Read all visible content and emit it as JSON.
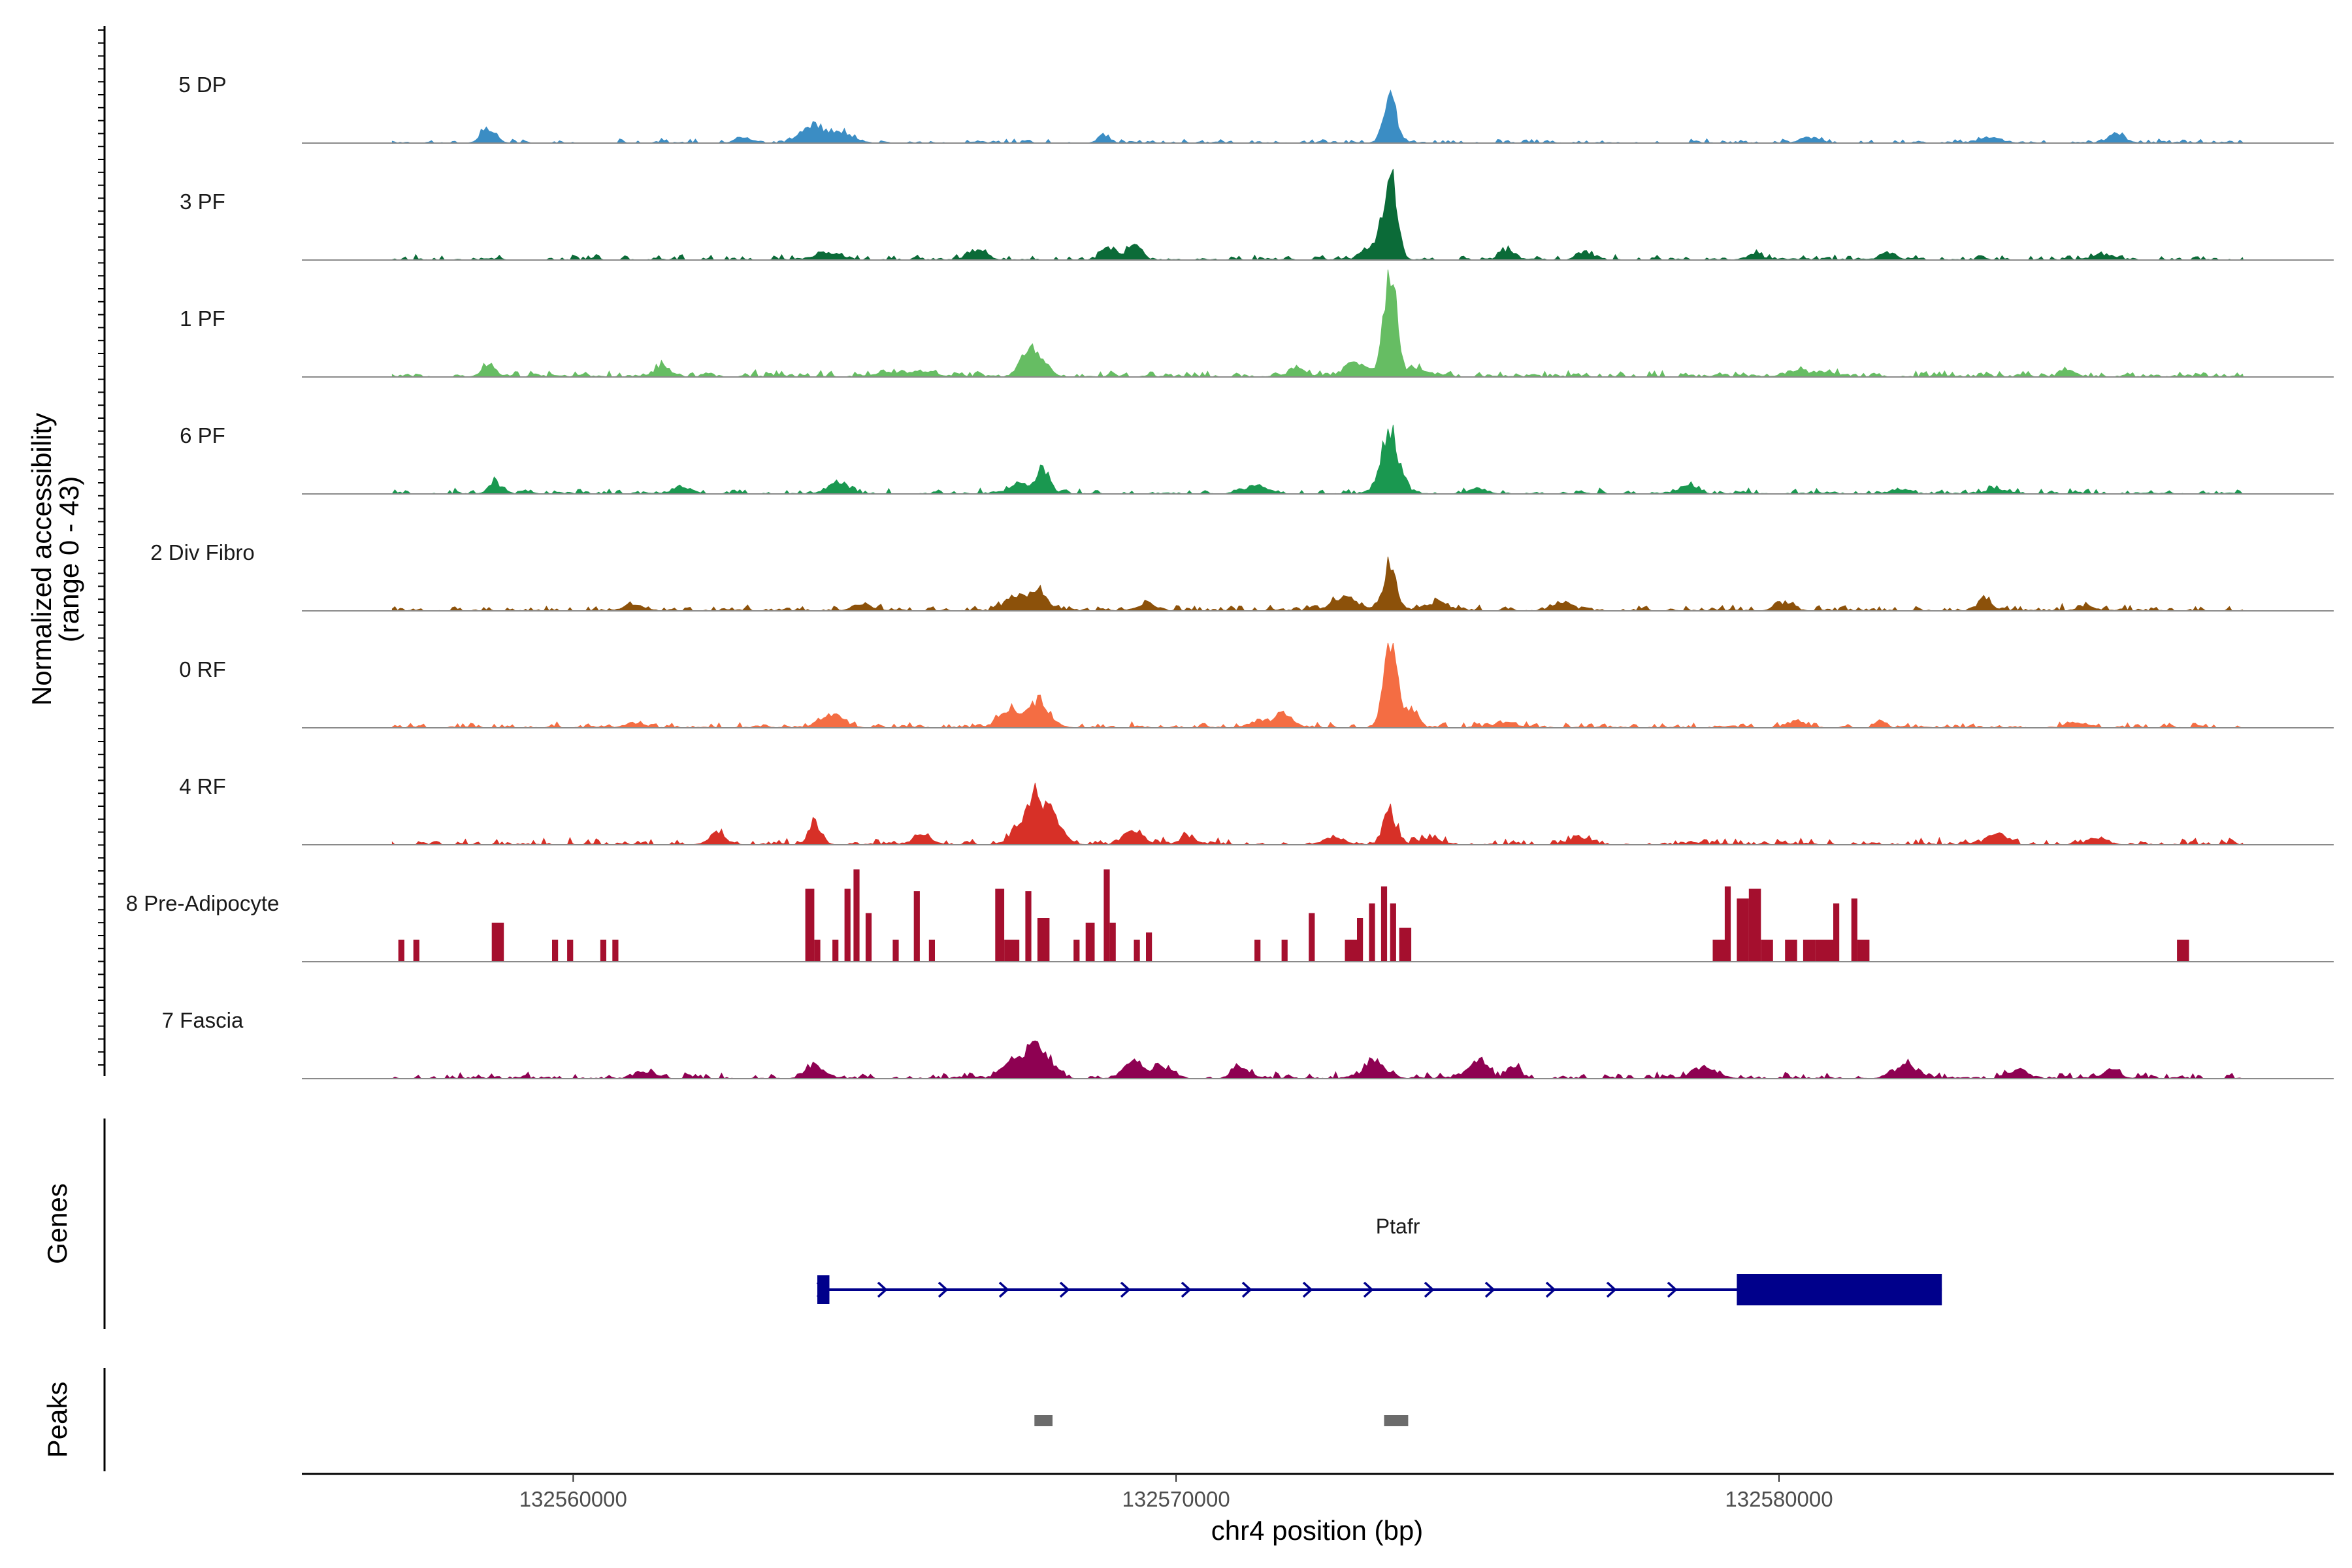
{
  "chart_data": {
    "type": "area",
    "title": "",
    "chromosome": "chr4",
    "xlabel": "chr4 position (bp)",
    "ylabel": "Normalized accessibility",
    "ylabel_range": "(range 0 - 43)",
    "xlim": [
      132555500,
      132589200
    ],
    "ylim": [
      0,
      43
    ],
    "x_ticks": [
      132560000,
      132570000,
      132580000
    ],
    "x_tick_labels": [
      "132560000",
      "132570000",
      "132580000"
    ],
    "tracks": [
      {
        "name": "5 DP",
        "color": "#3B8DC4",
        "style": "area",
        "noise": 2,
        "density": 0.55,
        "peaks": [
          [
            132573550,
            17,
            110
          ],
          [
            132558600,
            6,
            120
          ],
          [
            132564000,
            7,
            200
          ],
          [
            132564500,
            4,
            150
          ],
          [
            132568800,
            3,
            100
          ],
          [
            132562800,
            2,
            120
          ],
          [
            132580500,
            2,
            150
          ],
          [
            132583500,
            2,
            200
          ],
          [
            132585600,
            3,
            150
          ]
        ]
      },
      {
        "name": "3 PF",
        "color": "#0B6B38",
        "style": "area",
        "noise": 2.5,
        "density": 0.6,
        "peaks": [
          [
            132573550,
            34,
            110
          ],
          [
            132573250,
            6,
            150
          ],
          [
            132569300,
            7,
            110
          ],
          [
            132568900,
            5,
            120
          ],
          [
            132566700,
            4,
            150
          ],
          [
            132564200,
            3,
            200
          ],
          [
            132575500,
            4,
            120
          ],
          [
            132576800,
            3,
            100
          ],
          [
            132579600,
            2,
            150
          ],
          [
            132581800,
            2,
            150
          ],
          [
            132585400,
            2,
            150
          ]
        ]
      },
      {
        "name": "1 PF",
        "color": "#66BD63",
        "style": "area",
        "noise": 3,
        "density": 0.8,
        "peaks": [
          [
            132573550,
            43,
            100
          ],
          [
            132567700,
            9,
            150
          ],
          [
            132567500,
            6,
            120
          ],
          [
            132573000,
            5,
            200
          ],
          [
            132572000,
            3,
            150
          ],
          [
            132558600,
            4,
            120
          ],
          [
            132561500,
            4,
            120
          ],
          [
            132565500,
            2,
            400
          ],
          [
            132574000,
            3,
            200
          ],
          [
            132580500,
            2,
            350
          ],
          [
            132584800,
            3,
            120
          ]
        ]
      },
      {
        "name": "6 PF",
        "color": "#1A9850",
        "style": "area",
        "noise": 2.5,
        "density": 0.6,
        "peaks": [
          [
            132573550,
            24,
            150
          ],
          [
            132567800,
            10,
            110
          ],
          [
            132567400,
            4,
            150
          ],
          [
            132564400,
            5,
            150
          ],
          [
            132558700,
            5,
            100
          ],
          [
            132555900,
            4,
            80
          ],
          [
            132561800,
            3,
            150
          ],
          [
            132571300,
            3,
            200
          ],
          [
            132575000,
            2,
            150
          ],
          [
            132578500,
            3,
            150
          ],
          [
            132582000,
            2,
            150
          ],
          [
            132583600,
            2,
            150
          ]
        ]
      },
      {
        "name": "2 Div Fibro",
        "color": "#8C510A",
        "style": "area",
        "noise": 3,
        "density": 0.65,
        "peaks": [
          [
            132573550,
            18,
            110
          ],
          [
            132567700,
            8,
            150
          ],
          [
            132567300,
            6,
            120
          ],
          [
            132572800,
            5,
            200
          ],
          [
            132574300,
            3,
            200
          ],
          [
            132569500,
            3,
            150
          ],
          [
            132564800,
            3,
            150
          ],
          [
            132561000,
            3,
            150
          ],
          [
            132583400,
            5,
            100
          ],
          [
            132576400,
            3,
            150
          ],
          [
            132580100,
            3,
            150
          ],
          [
            132585100,
            2,
            150
          ]
        ]
      },
      {
        "name": "0 RF",
        "color": "#F46D43",
        "style": "area",
        "noise": 2.5,
        "density": 0.6,
        "peaks": [
          [
            132573550,
            34,
            110
          ],
          [
            132573900,
            8,
            100
          ],
          [
            132567700,
            10,
            200
          ],
          [
            132567200,
            7,
            150
          ],
          [
            132564300,
            5,
            200
          ],
          [
            132571800,
            5,
            150
          ],
          [
            132571400,
            3,
            150
          ],
          [
            132561000,
            2,
            150
          ],
          [
            132575500,
            2,
            150
          ],
          [
            132580300,
            2,
            150
          ],
          [
            132581700,
            3,
            80
          ],
          [
            132585000,
            2,
            150
          ]
        ]
      },
      {
        "name": "4 RF",
        "color": "#D73027",
        "style": "area",
        "noise": 3,
        "density": 0.6,
        "peaks": [
          [
            132567700,
            20,
            250
          ],
          [
            132573550,
            13,
            110
          ],
          [
            132564000,
            8,
            100
          ],
          [
            132569300,
            5,
            150
          ],
          [
            132562400,
            4,
            150
          ],
          [
            132565800,
            4,
            150
          ],
          [
            132570200,
            3,
            150
          ],
          [
            132572600,
            3,
            150
          ],
          [
            132574200,
            3,
            150
          ],
          [
            132583600,
            5,
            150
          ],
          [
            132585300,
            3,
            150
          ],
          [
            132576700,
            3,
            150
          ]
        ]
      },
      {
        "name": "8 Pre-Adipocyte",
        "color": "#A50F2E",
        "style": "bars",
        "blocks": [
          [
            132557100,
            132557200,
            9
          ],
          [
            132557350,
            132557450,
            9
          ],
          [
            132558650,
            132558850,
            16
          ],
          [
            132559650,
            132559750,
            9
          ],
          [
            132559900,
            132560000,
            9
          ],
          [
            132560450,
            132560550,
            9
          ],
          [
            132560650,
            132560750,
            9
          ],
          [
            132563850,
            132564000,
            30
          ],
          [
            132564000,
            132564100,
            9
          ],
          [
            132564300,
            132564400,
            9
          ],
          [
            132564500,
            132564600,
            30
          ],
          [
            132564650,
            132564750,
            38
          ],
          [
            132564850,
            132564950,
            20
          ],
          [
            132565300,
            132565400,
            9
          ],
          [
            132565650,
            132565750,
            29
          ],
          [
            132565900,
            132566000,
            9
          ],
          [
            132567000,
            132567150,
            30
          ],
          [
            132567150,
            132567400,
            9
          ],
          [
            132567500,
            132567600,
            29
          ],
          [
            132567700,
            132567900,
            18
          ],
          [
            132568300,
            132568400,
            9
          ],
          [
            132568500,
            132568650,
            16
          ],
          [
            132568800,
            132568900,
            38
          ],
          [
            132568900,
            132569000,
            16
          ],
          [
            132569300,
            132569400,
            9
          ],
          [
            132569500,
            132569600,
            12
          ],
          [
            132571300,
            132571400,
            9
          ],
          [
            132571750,
            132571850,
            9
          ],
          [
            132572200,
            132572300,
            20
          ],
          [
            132572800,
            132573000,
            9
          ],
          [
            132573000,
            132573100,
            18
          ],
          [
            132573200,
            132573300,
            24
          ],
          [
            132573400,
            132573500,
            31
          ],
          [
            132573550,
            132573650,
            24
          ],
          [
            132573700,
            132573900,
            14
          ],
          [
            132578900,
            132579100,
            9
          ],
          [
            132579100,
            132579200,
            31
          ],
          [
            132579300,
            132579500,
            26
          ],
          [
            132579500,
            132579700,
            30
          ],
          [
            132579700,
            132579900,
            9
          ],
          [
            132580100,
            132580300,
            9
          ],
          [
            132580400,
            132580600,
            9
          ],
          [
            132580600,
            132580900,
            9
          ],
          [
            132580900,
            132581000,
            24
          ],
          [
            132581200,
            132581300,
            26
          ],
          [
            132581300,
            132581500,
            9
          ],
          [
            132586600,
            132586800,
            9
          ]
        ]
      },
      {
        "name": "7 Fascia",
        "color": "#8E0152",
        "style": "area",
        "noise": 3,
        "density": 0.6,
        "peaks": [
          [
            132567700,
            15,
            200
          ],
          [
            132567250,
            6,
            150
          ],
          [
            132569300,
            7,
            150
          ],
          [
            132569800,
            4,
            150
          ],
          [
            132571100,
            4,
            150
          ],
          [
            132573300,
            6,
            200
          ],
          [
            132575000,
            7,
            150
          ],
          [
            132575600,
            5,
            100
          ],
          [
            132564000,
            5,
            150
          ],
          [
            132561200,
            3,
            150
          ],
          [
            132578800,
            4,
            200
          ],
          [
            132582100,
            5,
            200
          ],
          [
            132584000,
            3,
            150
          ],
          [
            132585500,
            3,
            150
          ]
        ]
      }
    ],
    "genes": [
      {
        "name": "Ptafr",
        "strand": "+",
        "start": 132564050,
        "end": 132582700,
        "exons": [
          [
            132564050,
            132564250
          ],
          [
            132579300,
            132582700
          ]
        ]
      }
    ],
    "peaks_track": [
      [
        132567650,
        132567950
      ],
      [
        132573450,
        132573850
      ]
    ],
    "panel_labels": {
      "genes": "Genes",
      "peaks": "Peaks"
    }
  }
}
